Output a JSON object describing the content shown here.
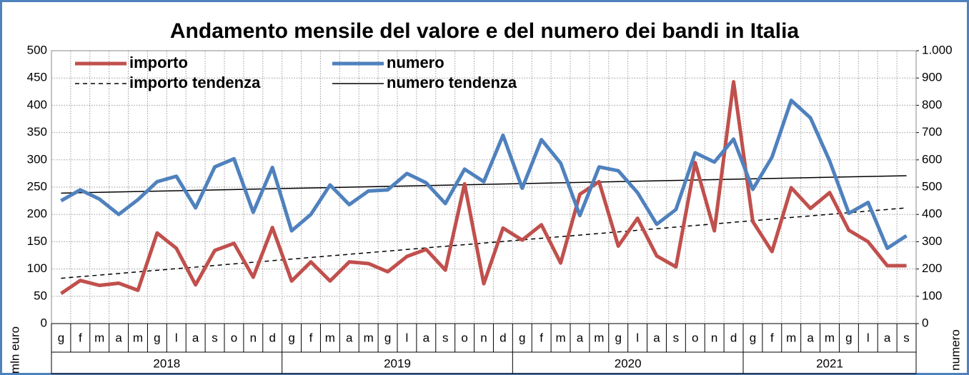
{
  "chart_data": {
    "type": "line",
    "title": "Andamento mensile del valore e del numero dei bandi in Italia",
    "ylabel": "mln euro",
    "y2label": "numero",
    "groups": [
      {
        "label": "2018",
        "categories": [
          "g",
          "f",
          "m",
          "a",
          "m",
          "g",
          "l",
          "a",
          "s",
          "o",
          "n",
          "d"
        ]
      },
      {
        "label": "2019",
        "categories": [
          "g",
          "f",
          "m",
          "a",
          "m",
          "g",
          "l",
          "a",
          "s",
          "o",
          "n",
          "d"
        ]
      },
      {
        "label": "2020",
        "categories": [
          "g",
          "f",
          "m",
          "a",
          "m",
          "g",
          "l",
          "a",
          "s",
          "o",
          "n",
          "d"
        ]
      },
      {
        "label": "2021",
        "categories": [
          "g",
          "f",
          "m",
          "a",
          "m",
          "g",
          "l",
          "a",
          "s"
        ]
      }
    ],
    "series": [
      {
        "name": "importo",
        "color": "#c0504d",
        "axis": "y",
        "values": [
          55,
          79,
          70,
          74,
          61,
          166,
          138,
          71,
          134,
          147,
          85,
          176,
          78,
          113,
          78,
          113,
          110,
          95,
          123,
          136,
          98,
          256,
          73,
          175,
          153,
          181,
          111,
          237,
          260,
          142,
          193,
          124,
          104,
          295,
          170,
          443,
          187,
          132,
          249,
          211,
          240,
          171,
          150,
          106,
          106
        ]
      },
      {
        "name": "numero",
        "color": "#4f81bd",
        "axis": "y2",
        "values": [
          450,
          490,
          456,
          400,
          454,
          520,
          540,
          424,
          574,
          604,
          408,
          572,
          340,
          400,
          508,
          436,
          486,
          490,
          550,
          516,
          440,
          566,
          520,
          690,
          496,
          674,
          588,
          396,
          574,
          560,
          480,
          364,
          418,
          626,
          592,
          676,
          492,
          610,
          818,
          754,
          596,
          404,
          444,
          276,
          322
        ]
      }
    ],
    "trends": [
      {
        "name": "importo tendenza",
        "color": "#000000",
        "dashed": true,
        "axis": "y",
        "start": 83,
        "end": 212
      },
      {
        "name": "numero tendenza",
        "color": "#000000",
        "dashed": false,
        "axis": "y2",
        "start": 478,
        "end": 542
      }
    ],
    "ylim": [
      0,
      500
    ],
    "yticks": [
      0,
      50,
      100,
      150,
      200,
      250,
      300,
      350,
      400,
      450,
      500
    ],
    "y2lim": [
      0,
      1000
    ],
    "y2ticks": [
      0,
      100,
      200,
      300,
      400,
      500,
      600,
      700,
      800,
      900,
      {
        "value": 1000,
        "label": "1.000"
      }
    ],
    "grid": true,
    "legend": "upper left"
  }
}
